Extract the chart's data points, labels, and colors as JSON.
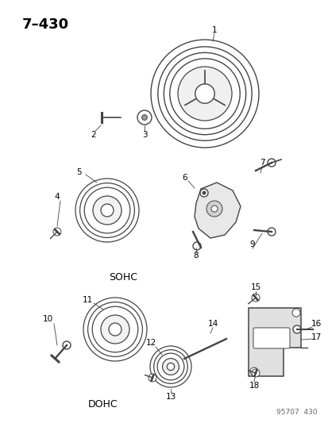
{
  "title": "7–430",
  "background_color": "#ffffff",
  "text_color": "#000000",
  "diagram_ref": "95707  430",
  "labels": {
    "sohc": "SOHC",
    "dohc": "DOHC"
  },
  "font_size_title": 13,
  "font_size_labels": 7.5,
  "font_size_ref": 6.5,
  "line_color": "#444444",
  "line_width": 0.7
}
